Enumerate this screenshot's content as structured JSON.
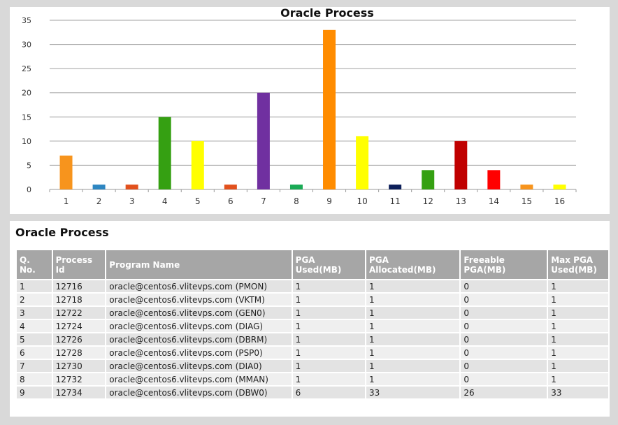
{
  "chart_data": {
    "type": "bar",
    "title": "Oracle Process",
    "categories": [
      "1",
      "2",
      "3",
      "4",
      "5",
      "6",
      "7",
      "8",
      "9",
      "10",
      "11",
      "12",
      "13",
      "14",
      "15",
      "16"
    ],
    "values": [
      7,
      1,
      1,
      15,
      10,
      1,
      20,
      1,
      33,
      11,
      1,
      4,
      10,
      4,
      1,
      1
    ],
    "colors": [
      "#f7941d",
      "#2e86c1",
      "#e2511d",
      "#35a012",
      "#ffff00",
      "#e2511d",
      "#7030a0",
      "#1aaa55",
      "#ff8c00",
      "#ffff00",
      "#0d1f5a",
      "#35a012",
      "#c00000",
      "#ff0000",
      "#f7941d",
      "#ffff00"
    ],
    "ylim": [
      0,
      35
    ],
    "yticks": [
      0,
      5,
      10,
      15,
      20,
      25,
      30,
      35
    ],
    "grid": true,
    "xlabel": "",
    "ylabel": ""
  },
  "table": {
    "title": "Oracle Process",
    "headers": [
      "Q. No.",
      "Process Id",
      "Program Name",
      "PGA Used(MB)",
      "PGA Allocated(MB)",
      "Freeable PGA(MB)",
      "Max PGA Used(MB)"
    ],
    "rows": [
      [
        "1",
        "12716",
        "oracle@centos6.vlitevps.com (PMON)",
        "1",
        "1",
        "0",
        "1"
      ],
      [
        "2",
        "12718",
        "oracle@centos6.vlitevps.com (VKTM)",
        "1",
        "1",
        "0",
        "1"
      ],
      [
        "3",
        "12722",
        "oracle@centos6.vlitevps.com (GEN0)",
        "1",
        "1",
        "0",
        "1"
      ],
      [
        "4",
        "12724",
        "oracle@centos6.vlitevps.com (DIAG)",
        "1",
        "1",
        "0",
        "1"
      ],
      [
        "5",
        "12726",
        "oracle@centos6.vlitevps.com (DBRM)",
        "1",
        "1",
        "0",
        "1"
      ],
      [
        "6",
        "12728",
        "oracle@centos6.vlitevps.com (PSP0)",
        "1",
        "1",
        "0",
        "1"
      ],
      [
        "7",
        "12730",
        "oracle@centos6.vlitevps.com (DIA0)",
        "1",
        "1",
        "0",
        "1"
      ],
      [
        "8",
        "12732",
        "oracle@centos6.vlitevps.com (MMAN)",
        "1",
        "1",
        "0",
        "1"
      ],
      [
        "9",
        "12734",
        "oracle@centos6.vlitevps.com (DBW0)",
        "6",
        "33",
        "26",
        "33"
      ]
    ]
  }
}
